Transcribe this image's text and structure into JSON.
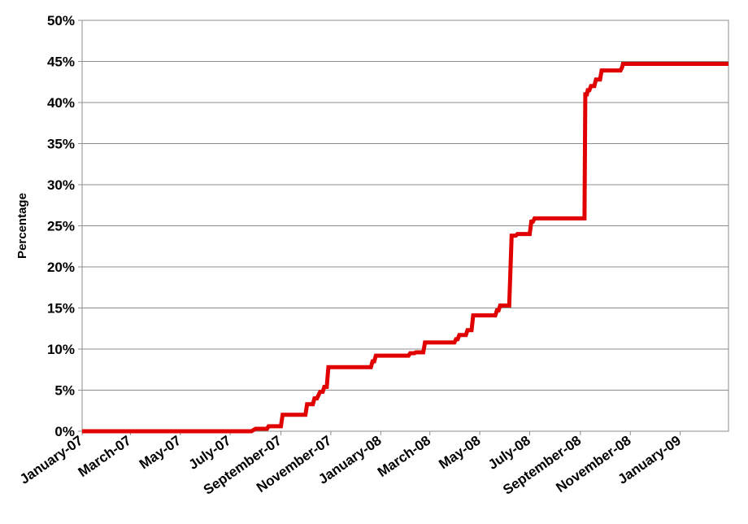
{
  "chart_data": {
    "type": "line",
    "title": "",
    "xlabel": "",
    "ylabel": "Percentage",
    "ylim": [
      0,
      50
    ],
    "yticks": [
      "0%",
      "5%",
      "10%",
      "15%",
      "20%",
      "25%",
      "30%",
      "35%",
      "40%",
      "45%",
      "50%"
    ],
    "xlim": [
      "2007-01-01",
      "2009-03-01"
    ],
    "xticks": [
      "January-07",
      "March-07",
      "May-07",
      "July-07",
      "September-07",
      "November-07",
      "January-08",
      "March-08",
      "May-08",
      "July-08",
      "September-08",
      "November-08",
      "January-09"
    ],
    "grid": true,
    "legend": "none",
    "line_color": "#e00000",
    "series": [
      {
        "x": [
          "2007-01-01",
          "2007-07-27",
          "2007-08-01",
          "2007-08-15",
          "2007-08-17",
          "2007-09-01",
          "2007-09-03",
          "2007-10-01",
          "2007-10-03",
          "2007-10-10",
          "2007-10-12",
          "2007-10-15",
          "2007-10-19",
          "2007-10-22",
          "2007-10-24",
          "2007-10-27",
          "2007-10-29",
          "2007-11-05",
          "2007-11-06",
          "2007-12-20",
          "2007-12-22",
          "2007-12-24",
          "2007-12-26",
          "2008-02-04",
          "2008-02-06",
          "2008-02-11",
          "2008-02-13",
          "2008-02-22",
          "2008-02-24",
          "2008-03-31",
          "2008-04-02",
          "2008-04-04",
          "2008-04-06",
          "2008-04-14",
          "2008-04-16",
          "2008-04-21",
          "2008-04-23",
          "2008-05-20",
          "2008-05-22",
          "2008-05-24",
          "2008-05-26",
          "2008-06-06",
          "2008-06-09",
          "2008-06-14",
          "2008-06-16",
          "2008-07-01",
          "2008-07-03",
          "2008-07-05",
          "2008-07-07",
          "2008-09-06",
          "2008-09-07",
          "2008-09-09",
          "2008-09-10",
          "2008-09-12",
          "2008-09-14",
          "2008-09-18",
          "2008-09-20",
          "2008-09-25",
          "2008-09-27",
          "2008-10-20",
          "2008-10-22",
          "2008-10-23",
          "2009-03-01"
        ],
        "y": [
          0,
          0,
          0.3,
          0.3,
          0.6,
          0.6,
          2.0,
          2.0,
          3.3,
          3.3,
          4.0,
          4.0,
          4.8,
          4.8,
          5.4,
          5.4,
          7.8,
          7.8,
          7.8,
          7.8,
          8.5,
          8.5,
          9.2,
          9.2,
          9.5,
          9.5,
          9.6,
          9.6,
          10.8,
          10.8,
          11.2,
          11.2,
          11.7,
          11.7,
          12.3,
          12.3,
          14.1,
          14.1,
          14.7,
          14.7,
          15.3,
          15.3,
          23.8,
          23.8,
          24.0,
          24.0,
          25.5,
          25.5,
          25.9,
          25.9,
          41.0,
          41.0,
          41.5,
          41.5,
          42.0,
          42.0,
          42.8,
          42.8,
          43.9,
          43.9,
          44.3,
          44.7,
          44.7
        ]
      }
    ]
  }
}
